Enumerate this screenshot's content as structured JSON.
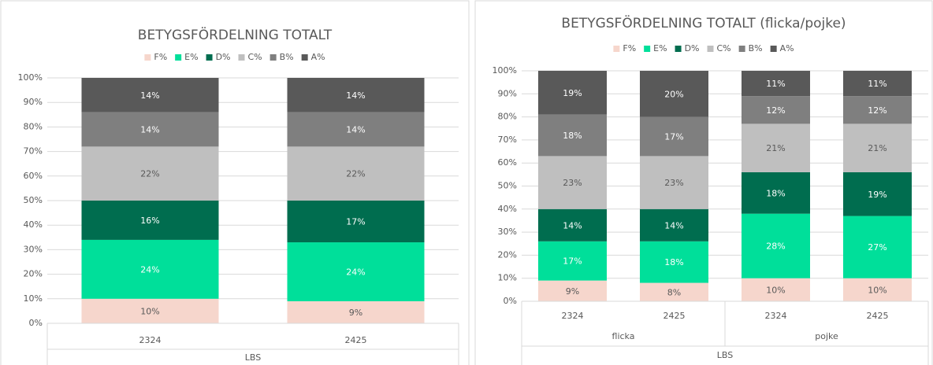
{
  "chart_data": [
    {
      "type": "stacked_bar",
      "title": "BETYGSFÖRDELNING TOTALT",
      "categories": [
        "2324",
        "2425"
      ],
      "axis_group": "LBS",
      "ylim": [
        0,
        100
      ],
      "yticks": [
        {
          "value": 0,
          "label": "0%"
        },
        {
          "value": 10,
          "label": "10%"
        },
        {
          "value": 20,
          "label": "20%"
        },
        {
          "value": 30,
          "label": "30%"
        },
        {
          "value": 40,
          "label": "40%"
        },
        {
          "value": 50,
          "label": "50%"
        },
        {
          "value": 60,
          "label": "60%"
        },
        {
          "value": 70,
          "label": "70%"
        },
        {
          "value": 80,
          "label": "80%"
        },
        {
          "value": 90,
          "label": "90%"
        },
        {
          "value": 100,
          "label": "100%"
        }
      ],
      "grid": true,
      "legend": "top",
      "series": [
        {
          "name": "F%",
          "color": "#f6d6cc",
          "values": [
            10,
            9
          ],
          "value_labels": [
            "10%",
            "9%"
          ]
        },
        {
          "name": "E%",
          "color": "#00df9a",
          "values": [
            24,
            24
          ],
          "value_labels": [
            "24%",
            "24%"
          ]
        },
        {
          "name": "D%",
          "color": "#006d4f",
          "values": [
            16,
            17
          ],
          "value_labels": [
            "16%",
            "17%"
          ]
        },
        {
          "name": "C%",
          "color": "#bfbfbf",
          "values": [
            22,
            22
          ],
          "value_labels": [
            "22%",
            "22%"
          ]
        },
        {
          "name": "B%",
          "color": "#7f7f7f",
          "values": [
            14,
            14
          ],
          "value_labels": [
            "14%",
            "14%"
          ]
        },
        {
          "name": "A%",
          "color": "#595959",
          "values": [
            14,
            14
          ],
          "value_labels": [
            "14%",
            "14%"
          ]
        }
      ]
    },
    {
      "type": "stacked_bar",
      "title": "BETYGSFÖRDELNING TOTALT  (flicka/pojke)",
      "categories": [
        "2324",
        "2425",
        "2324",
        "2425"
      ],
      "groups": [
        {
          "label": "flicka",
          "span": 2
        },
        {
          "label": "pojke",
          "span": 2
        }
      ],
      "axis_group": "LBS",
      "ylim": [
        0,
        100
      ],
      "yticks": [
        {
          "value": 0,
          "label": "0%"
        },
        {
          "value": 10,
          "label": "10%"
        },
        {
          "value": 20,
          "label": "20%"
        },
        {
          "value": 30,
          "label": "30%"
        },
        {
          "value": 40,
          "label": "40%"
        },
        {
          "value": 50,
          "label": "50%"
        },
        {
          "value": 60,
          "label": "60%"
        },
        {
          "value": 70,
          "label": "70%"
        },
        {
          "value": 80,
          "label": "80%"
        },
        {
          "value": 90,
          "label": "90%"
        },
        {
          "value": 100,
          "label": "100%"
        }
      ],
      "grid": true,
      "legend": "top",
      "series": [
        {
          "name": "F%",
          "color": "#f6d6cc",
          "values": [
            9,
            8,
            10,
            10
          ],
          "value_labels": [
            "9%",
            "8%",
            "10%",
            "10%"
          ]
        },
        {
          "name": "E%",
          "color": "#00df9a",
          "values": [
            17,
            18,
            28,
            27
          ],
          "value_labels": [
            "17%",
            "18%",
            "28%",
            "27%"
          ]
        },
        {
          "name": "D%",
          "color": "#006d4f",
          "values": [
            14,
            14,
            18,
            19
          ],
          "value_labels": [
            "14%",
            "14%",
            "18%",
            "19%"
          ]
        },
        {
          "name": "C%",
          "color": "#bfbfbf",
          "values": [
            23,
            23,
            21,
            21
          ],
          "value_labels": [
            "23%",
            "23%",
            "21%",
            "21%"
          ]
        },
        {
          "name": "B%",
          "color": "#7f7f7f",
          "values": [
            18,
            17,
            12,
            12
          ],
          "value_labels": [
            "18%",
            "17%",
            "12%",
            "12%"
          ]
        },
        {
          "name": "A%",
          "color": "#595959",
          "values": [
            19,
            20,
            11,
            11
          ],
          "value_labels": [
            "19%",
            "20%",
            "11%",
            "11%"
          ]
        }
      ]
    }
  ]
}
